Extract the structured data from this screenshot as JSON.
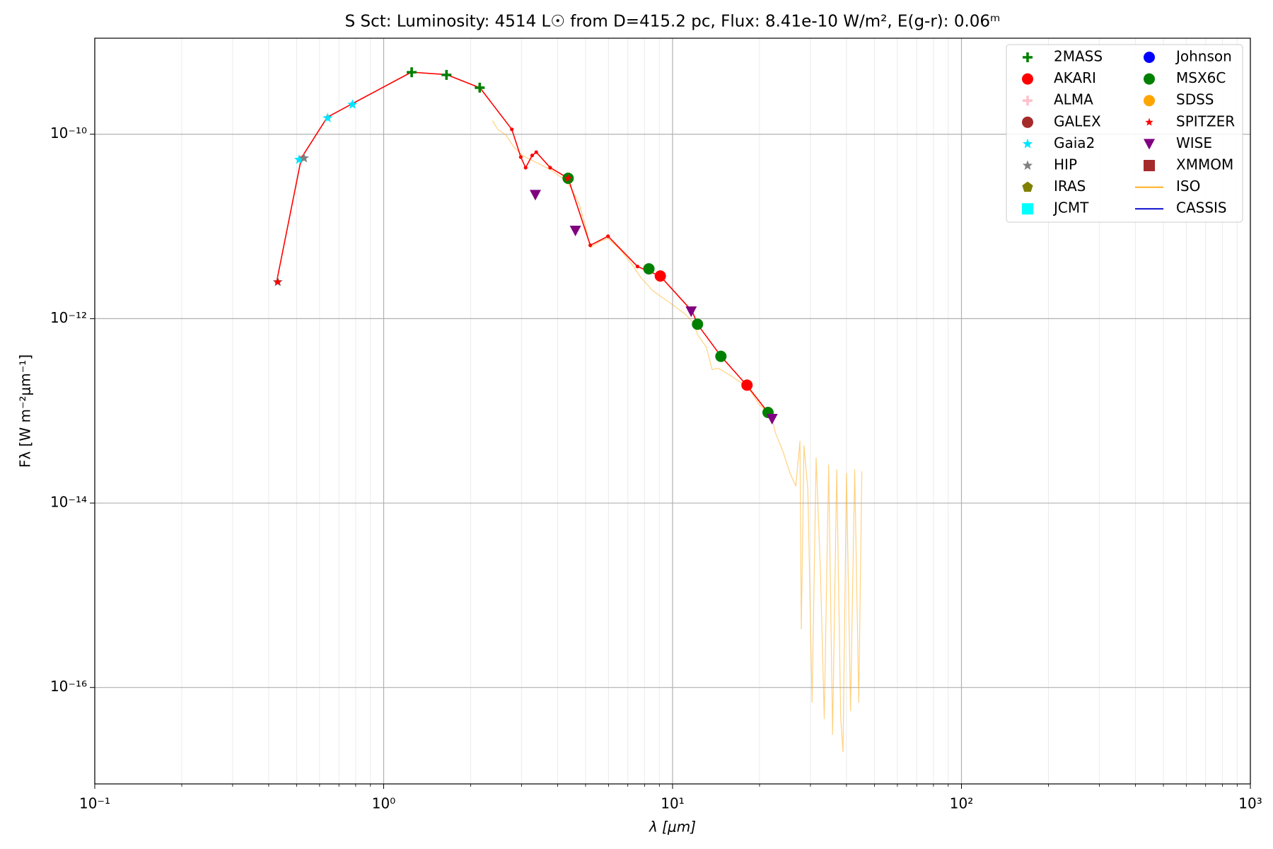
{
  "chart_data": {
    "type": "scatter",
    "title": "S Sct:  Luminosity: 4514 L☉ from D=415.2 pc, Flux: 8.41e-10 W/m², E(g-r): 0.06ᵐ",
    "xlabel": "λ [μm]",
    "ylabel": "Fλ [W m⁻²μm⁻¹]",
    "xscale": "log",
    "yscale": "log",
    "grid": true,
    "legend": "upper right",
    "xlim": [
      0.1,
      1000
    ],
    "ylim": [
      9e-18,
      1.1e-09
    ],
    "xticks": [
      {
        "value": 0.1,
        "label": "10⁻¹"
      },
      {
        "value": 1,
        "label": "10⁰"
      },
      {
        "value": 10,
        "label": "10¹"
      },
      {
        "value": 100,
        "label": "10²"
      },
      {
        "value": 1000,
        "label": "10³"
      }
    ],
    "xminorticks": [
      0.2,
      0.3,
      0.4,
      0.5,
      0.6,
      0.7,
      0.8,
      0.9,
      2,
      3,
      4,
      5,
      6,
      7,
      8,
      9,
      20,
      30,
      40,
      50,
      60,
      70,
      80,
      90,
      200,
      300,
      400,
      500,
      600,
      700,
      800,
      900
    ],
    "yticks": [
      {
        "value": 1e-16,
        "label": "10⁻¹⁶"
      },
      {
        "value": 1e-14,
        "label": "10⁻¹⁴"
      },
      {
        "value": 1e-12,
        "label": "10⁻¹²"
      },
      {
        "value": 1e-10,
        "label": "10⁻¹⁰"
      }
    ],
    "series": [
      {
        "name": "2MASS",
        "color": "#008000",
        "marker": "plus",
        "x": [
          1.25,
          1.65,
          2.15
        ],
        "values": [
          4.7e-10,
          4.4e-10,
          3.2e-10
        ]
      },
      {
        "name": "AKARI",
        "color": "#ff0000",
        "marker": "circle",
        "x": [
          9.07,
          18.1
        ],
        "values": [
          2.9e-12,
          1.9e-13
        ]
      },
      {
        "name": "ALMA",
        "color": "#ffc0cb",
        "marker": "plus",
        "x": [],
        "values": []
      },
      {
        "name": "GALEX",
        "color": "#a52a2a",
        "marker": "circle",
        "x": [],
        "values": []
      },
      {
        "name": "Gaia2",
        "color": "#00e5ff",
        "marker": "star",
        "x": [
          0.51,
          0.64,
          0.78
        ],
        "values": [
          5.3e-11,
          1.5e-10,
          2.1e-10
        ]
      },
      {
        "name": "HIP",
        "color": "#808080",
        "marker": "star",
        "x": [
          0.43,
          0.53
        ],
        "values": [
          2.5e-12,
          5.5e-11
        ]
      },
      {
        "name": "IRAS",
        "color": "#808000",
        "marker": "pentagon",
        "x": [],
        "values": []
      },
      {
        "name": "JCMT",
        "color": "#00ffff",
        "marker": "square",
        "x": [],
        "values": []
      },
      {
        "name": "Johnson",
        "color": "#0000ff",
        "marker": "circle",
        "x": [],
        "values": []
      },
      {
        "name": "MSX6C",
        "color": "#008000",
        "marker": "circle",
        "x": [
          4.35,
          8.28,
          12.2,
          14.7,
          21.4
        ],
        "values": [
          3.33e-11,
          3.47e-12,
          8.7e-13,
          3.9e-13,
          9.6e-14
        ]
      },
      {
        "name": "SDSS",
        "color": "#ffa500",
        "marker": "circle",
        "x": [],
        "values": []
      },
      {
        "name": "SPITZER",
        "color": "#ff0000",
        "marker": "smallstar",
        "x": [
          0.43,
          4.35
        ],
        "values": [
          2.5e-12,
          3.33e-11
        ]
      },
      {
        "name": "WISE",
        "color": "#800080",
        "marker": "triangle-down",
        "x": [
          3.35,
          4.61,
          11.6,
          22.1
        ],
        "values": [
          2.2e-11,
          9e-12,
          1.2e-12,
          8.2e-14
        ]
      },
      {
        "name": "XMMOM",
        "color": "#a52a2a",
        "marker": "square",
        "x": [],
        "values": []
      },
      {
        "name": "ISO",
        "color": "#ffa500",
        "marker": "line",
        "x": [
          2.38,
          2.48,
          2.65,
          2.83,
          3.02,
          3.22,
          3.44,
          3.79,
          4.18,
          4.46,
          4.76,
          5.02,
          5.19,
          5.61,
          5.98,
          6.59,
          7.27,
          7.76,
          8.55,
          9.75,
          11.1,
          11.8,
          12.2,
          13.1,
          13.7,
          14.4,
          15.9,
          17.5,
          18.7,
          19.9,
          22.0,
          22.7,
          24.2,
          25.5,
          26.7,
          27.6,
          27.9,
          28.5,
          29.4,
          30.4,
          31.4,
          32.5,
          33.5,
          34.7,
          35.8,
          37.0,
          38.2,
          38.9,
          40.0,
          41.3,
          42.7,
          44.1,
          45.2
        ],
        "values": [
          1.41e-10,
          1.13e-10,
          9.8e-11,
          7.2e-11,
          5.9e-11,
          5.3e-11,
          4.8e-11,
          4.1e-11,
          3.3e-11,
          2.6e-11,
          1.73e-11,
          9.4e-12,
          5.9e-12,
          6.9e-12,
          7.4e-12,
          5.6e-12,
          3.8e-12,
          2.8e-12,
          2e-12,
          1.5e-12,
          1.11e-12,
          9e-13,
          6.7e-13,
          4.9e-13,
          2.8e-13,
          2.9e-13,
          2.4e-13,
          1.96e-13,
          1.6e-13,
          1.18e-13,
          8.7e-14,
          5.8e-14,
          3.5e-14,
          2.1e-14,
          1.53e-14,
          4.7e-14,
          4.3e-16,
          4.2e-14,
          1.39e-14,
          6.9e-17,
          3.1e-14,
          1.8e-15,
          4.6e-17,
          2.6e-14,
          3.1e-17,
          2.3e-14,
          4.6e-17,
          2e-17,
          2.1e-14,
          5.6e-17,
          2.3e-14,
          6.9e-17,
          2.2e-14
        ]
      },
      {
        "name": "CASSIS",
        "color": "#0000cd",
        "marker": "line",
        "x": [],
        "values": []
      },
      {
        "color": "#ff0000",
        "marker": "dot",
        "x": [
          0.426,
          0.519,
          0.638,
          0.776,
          1.247,
          1.65,
          2.154,
          2.777,
          2.983,
          3.1,
          3.266,
          3.374,
          3.77,
          4.35,
          5.19,
          5.98,
          7.56,
          9.07,
          11.7,
          12.2,
          14.7,
          18.1,
          21.4,
          22.1
        ],
        "values": [
          2.5e-12,
          5.54e-11,
          1.53e-10,
          2.13e-10,
          4.71e-10,
          4.43e-10,
          3.19e-10,
          1.13e-10,
          5.65e-11,
          4.34e-11,
          5.89e-11,
          6.39e-11,
          4.34e-11,
          3.33e-11,
          6.25e-12,
          7.83e-12,
          3.68e-12,
          2.89e-12,
          1.2e-12,
          8.67e-13,
          3.92e-13,
          1.88e-13,
          9.6e-14,
          8.2e-14
        ]
      }
    ]
  }
}
